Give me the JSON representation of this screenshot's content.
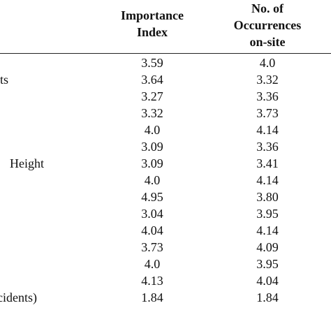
{
  "table": {
    "columns": [
      "Importance\nIndex",
      "No. of\nOccurrences\non-site"
    ],
    "rows": [
      {
        "values": [
          "3.59",
          "4.0"
        ]
      },
      {
        "label": "ts",
        "values": [
          "3.64",
          "3.32"
        ]
      },
      {
        "values": [
          "3.27",
          "3.36"
        ]
      },
      {
        "values": [
          "3.32",
          "3.73"
        ]
      },
      {
        "values": [
          "4.0",
          "4.14"
        ]
      },
      {
        "values": [
          "3.09",
          "3.36"
        ]
      },
      {
        "label": "Height",
        "values": [
          "3.09",
          "3.41"
        ]
      },
      {
        "values": [
          "4.0",
          "4.14"
        ]
      },
      {
        "values": [
          "4.95",
          "3.80"
        ]
      },
      {
        "values": [
          "3.04",
          "3.95"
        ]
      },
      {
        "values": [
          "4.04",
          "4.14"
        ]
      },
      {
        "values": [
          "3.73",
          "4.09"
        ]
      },
      {
        "values": [
          "4.0",
          "3.95"
        ]
      },
      {
        "values": [
          "4.13",
          "4.04"
        ]
      },
      {
        "label": "cidents)",
        "values": [
          "1.84",
          "1.84"
        ]
      }
    ]
  }
}
